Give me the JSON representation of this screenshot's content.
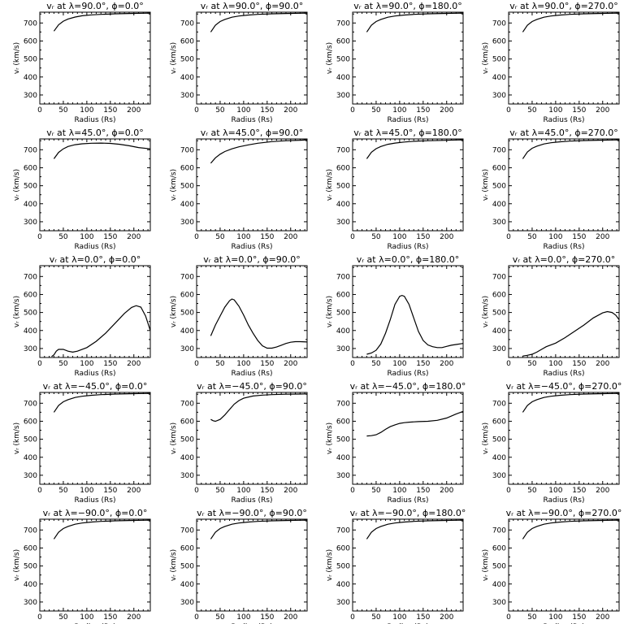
{
  "figure": {
    "xlabel": "Radius (Rs)",
    "ylabel": "vᵣ (km/s)",
    "xlim": [
      0,
      235
    ],
    "ylim": [
      250,
      760
    ],
    "xticks": [
      0,
      50,
      100,
      150,
      200
    ],
    "yticks": [
      300,
      400,
      500,
      600,
      700
    ],
    "line_color": "#000000",
    "grid": false
  },
  "chart_data": [
    {
      "type": "line",
      "title": "vᵣ at λ=90.0°, ϕ=0.0°",
      "xlabel": "Radius (Rs)",
      "ylabel": "vᵣ (km/s)",
      "xlim": [
        0,
        235
      ],
      "ylim": [
        250,
        760
      ],
      "series": [
        {
          "x": [
            30,
            40,
            50,
            60,
            75,
            90,
            110,
            130,
            160,
            190,
            220,
            235
          ],
          "y": [
            655,
            690,
            710,
            722,
            733,
            740,
            745,
            748,
            751,
            753,
            754,
            755
          ]
        }
      ]
    },
    {
      "type": "line",
      "title": "vᵣ at λ=90.0°, ϕ=90.0°",
      "xlabel": "Radius (Rs)",
      "ylabel": "vᵣ (km/s)",
      "xlim": [
        0,
        235
      ],
      "ylim": [
        250,
        760
      ],
      "series": [
        {
          "x": [
            30,
            40,
            50,
            60,
            75,
            90,
            110,
            130,
            160,
            190,
            220,
            235
          ],
          "y": [
            650,
            688,
            708,
            720,
            732,
            739,
            744,
            748,
            751,
            753,
            754,
            755
          ]
        }
      ]
    },
    {
      "type": "line",
      "title": "vᵣ at λ=90.0°, ϕ=180.0°",
      "xlabel": "Radius (Rs)",
      "ylabel": "vᵣ (km/s)",
      "xlim": [
        0,
        235
      ],
      "ylim": [
        250,
        760
      ],
      "series": [
        {
          "x": [
            30,
            40,
            50,
            60,
            75,
            90,
            110,
            130,
            160,
            190,
            220,
            235
          ],
          "y": [
            650,
            688,
            708,
            720,
            732,
            739,
            744,
            748,
            751,
            753,
            754,
            755
          ]
        }
      ]
    },
    {
      "type": "line",
      "title": "vᵣ at λ=90.0°, ϕ=270.0°",
      "xlabel": "Radius (Rs)",
      "ylabel": "vᵣ (km/s)",
      "xlim": [
        0,
        235
      ],
      "ylim": [
        250,
        760
      ],
      "series": [
        {
          "x": [
            30,
            40,
            50,
            60,
            75,
            90,
            110,
            130,
            160,
            190,
            220,
            235
          ],
          "y": [
            650,
            688,
            708,
            720,
            732,
            739,
            744,
            748,
            751,
            753,
            754,
            755
          ]
        }
      ]
    },
    {
      "type": "line",
      "title": "vᵣ at λ=45.0°, ϕ=0.0°",
      "xlabel": "Radius (Rs)",
      "ylabel": "vᵣ (km/s)",
      "xlim": [
        0,
        235
      ],
      "ylim": [
        250,
        760
      ],
      "series": [
        {
          "x": [
            30,
            40,
            50,
            60,
            75,
            90,
            110,
            130,
            150,
            170,
            190,
            210,
            235
          ],
          "y": [
            650,
            685,
            705,
            718,
            728,
            733,
            736,
            737,
            735,
            730,
            722,
            712,
            705
          ]
        }
      ]
    },
    {
      "type": "line",
      "title": "vᵣ at λ=45.0°, ϕ=90.0°",
      "xlabel": "Radius (Rs)",
      "ylabel": "vᵣ (km/s)",
      "xlim": [
        0,
        235
      ],
      "ylim": [
        250,
        760
      ],
      "series": [
        {
          "x": [
            30,
            40,
            50,
            60,
            75,
            90,
            110,
            130,
            160,
            190,
            220,
            235
          ],
          "y": [
            625,
            655,
            675,
            690,
            705,
            716,
            727,
            736,
            745,
            750,
            753,
            755
          ]
        }
      ]
    },
    {
      "type": "line",
      "title": "vᵣ at λ=45.0°, ϕ=180.0°",
      "xlabel": "Radius (Rs)",
      "ylabel": "vᵣ (km/s)",
      "xlim": [
        0,
        235
      ],
      "ylim": [
        250,
        760
      ],
      "series": [
        {
          "x": [
            30,
            40,
            50,
            60,
            75,
            90,
            110,
            130,
            160,
            190,
            220,
            235
          ],
          "y": [
            650,
            686,
            706,
            718,
            730,
            737,
            743,
            747,
            750,
            752,
            754,
            755
          ]
        }
      ]
    },
    {
      "type": "line",
      "title": "vᵣ at λ=45.0°, ϕ=270.0°",
      "xlabel": "Radius (Rs)",
      "ylabel": "vᵣ (km/s)",
      "xlim": [
        0,
        235
      ],
      "ylim": [
        250,
        760
      ],
      "series": [
        {
          "x": [
            30,
            40,
            50,
            60,
            75,
            90,
            110,
            130,
            160,
            190,
            220,
            235
          ],
          "y": [
            650,
            688,
            708,
            720,
            732,
            739,
            744,
            748,
            751,
            753,
            754,
            755
          ]
        }
      ]
    },
    {
      "type": "line",
      "title": "vᵣ at λ=0.0°, ϕ=0.0°",
      "xlabel": "Radius (Rs)",
      "ylabel": "vᵣ (km/s)",
      "xlim": [
        0,
        235
      ],
      "ylim": [
        250,
        760
      ],
      "series": [
        {
          "x": [
            25,
            30,
            35,
            40,
            50,
            60,
            70,
            80,
            100,
            120,
            140,
            160,
            180,
            195,
            205,
            215,
            225,
            235
          ],
          "y": [
            255,
            265,
            285,
            295,
            295,
            285,
            280,
            285,
            305,
            340,
            385,
            440,
            495,
            528,
            538,
            530,
            480,
            400
          ]
        }
      ]
    },
    {
      "type": "line",
      "title": "vᵣ at λ=0.0°, ϕ=90.0°",
      "xlabel": "Radius (Rs)",
      "ylabel": "vᵣ (km/s)",
      "xlim": [
        0,
        235
      ],
      "ylim": [
        250,
        760
      ],
      "series": [
        {
          "x": [
            30,
            40,
            50,
            60,
            70,
            75,
            80,
            90,
            100,
            110,
            120,
            130,
            140,
            150,
            160,
            170,
            180,
            190,
            200,
            210,
            220,
            235
          ],
          "y": [
            370,
            430,
            480,
            530,
            565,
            575,
            570,
            535,
            485,
            430,
            385,
            345,
            315,
            302,
            302,
            308,
            318,
            328,
            335,
            338,
            338,
            336
          ]
        }
      ]
    },
    {
      "type": "line",
      "title": "vᵣ at λ=0.0°, ϕ=180.0°",
      "xlabel": "Radius (Rs)",
      "ylabel": "vᵣ (km/s)",
      "xlim": [
        0,
        235
      ],
      "ylim": [
        250,
        760
      ],
      "series": [
        {
          "x": [
            30,
            40,
            50,
            60,
            70,
            80,
            90,
            100,
            105,
            110,
            120,
            130,
            140,
            150,
            160,
            170,
            180,
            190,
            200,
            210,
            220,
            235
          ],
          "y": [
            268,
            275,
            290,
            325,
            385,
            460,
            545,
            590,
            595,
            590,
            545,
            470,
            395,
            345,
            320,
            310,
            305,
            305,
            312,
            318,
            322,
            328
          ]
        }
      ]
    },
    {
      "type": "line",
      "title": "vᵣ at λ=0.0°, ϕ=270.0°",
      "xlabel": "Radius (Rs)",
      "ylabel": "vᵣ (km/s)",
      "xlim": [
        0,
        235
      ],
      "ylim": [
        250,
        760
      ],
      "series": [
        {
          "x": [
            30,
            40,
            50,
            60,
            70,
            80,
            100,
            120,
            140,
            160,
            180,
            200,
            210,
            220,
            228,
            235
          ],
          "y": [
            258,
            262,
            268,
            280,
            295,
            310,
            330,
            360,
            395,
            430,
            470,
            498,
            505,
            500,
            485,
            460
          ]
        }
      ]
    },
    {
      "type": "line",
      "title": "vᵣ at λ=−45.0°, ϕ=0.0°",
      "xlabel": "Radius (Rs)",
      "ylabel": "vᵣ (km/s)",
      "xlim": [
        0,
        235
      ],
      "ylim": [
        250,
        760
      ],
      "series": [
        {
          "x": [
            30,
            40,
            50,
            60,
            75,
            90,
            110,
            130,
            160,
            190,
            220,
            235
          ],
          "y": [
            650,
            688,
            708,
            720,
            732,
            739,
            744,
            748,
            751,
            753,
            754,
            755
          ]
        }
      ]
    },
    {
      "type": "line",
      "title": "vᵣ at λ=−45.0°, ϕ=90.0°",
      "xlabel": "Radius (Rs)",
      "ylabel": "vᵣ (km/s)",
      "xlim": [
        0,
        235
      ],
      "ylim": [
        250,
        760
      ],
      "series": [
        {
          "x": [
            30,
            35,
            40,
            50,
            60,
            70,
            80,
            90,
            100,
            120,
            140,
            160,
            190,
            220,
            235
          ],
          "y": [
            610,
            603,
            600,
            610,
            635,
            665,
            695,
            715,
            728,
            740,
            745,
            748,
            750,
            751,
            752
          ]
        }
      ]
    },
    {
      "type": "line",
      "title": "vᵣ at λ=−45.0°, ϕ=180.0°",
      "xlabel": "Radius (Rs)",
      "ylabel": "vᵣ (km/s)",
      "xlim": [
        0,
        235
      ],
      "ylim": [
        250,
        760
      ],
      "series": [
        {
          "x": [
            30,
            40,
            50,
            60,
            70,
            80,
            90,
            100,
            110,
            120,
            140,
            160,
            180,
            200,
            220,
            235
          ],
          "y": [
            518,
            520,
            525,
            538,
            555,
            570,
            580,
            588,
            592,
            595,
            598,
            600,
            605,
            618,
            640,
            655
          ]
        }
      ]
    },
    {
      "type": "line",
      "title": "vᵣ at λ=−45.0°, ϕ=270.0°",
      "xlabel": "Radius (Rs)",
      "ylabel": "vᵣ (km/s)",
      "xlim": [
        0,
        235
      ],
      "ylim": [
        250,
        760
      ],
      "series": [
        {
          "x": [
            30,
            40,
            50,
            60,
            75,
            90,
            110,
            130,
            160,
            190,
            220,
            235
          ],
          "y": [
            650,
            688,
            708,
            720,
            732,
            739,
            744,
            748,
            751,
            753,
            754,
            755
          ]
        }
      ]
    },
    {
      "type": "line",
      "title": "vᵣ at λ=−90.0°, ϕ=0.0°",
      "xlabel": "Radius (Rs)",
      "ylabel": "vᵣ (km/s)",
      "xlim": [
        0,
        235
      ],
      "ylim": [
        250,
        760
      ],
      "series": [
        {
          "x": [
            30,
            40,
            50,
            60,
            75,
            90,
            110,
            130,
            160,
            190,
            220,
            235
          ],
          "y": [
            650,
            688,
            708,
            720,
            732,
            739,
            744,
            748,
            751,
            753,
            754,
            755
          ]
        }
      ]
    },
    {
      "type": "line",
      "title": "vᵣ at λ=−90.0°, ϕ=90.0°",
      "xlabel": "Radius (Rs)",
      "ylabel": "vᵣ (km/s)",
      "xlim": [
        0,
        235
      ],
      "ylim": [
        250,
        760
      ],
      "series": [
        {
          "x": [
            30,
            40,
            50,
            60,
            75,
            90,
            110,
            130,
            160,
            190,
            220,
            235
          ],
          "y": [
            650,
            688,
            708,
            720,
            732,
            739,
            744,
            748,
            751,
            753,
            754,
            755
          ]
        }
      ]
    },
    {
      "type": "line",
      "title": "vᵣ at λ=−90.0°, ϕ=180.0°",
      "xlabel": "Radius (Rs)",
      "ylabel": "vᵣ (km/s)",
      "xlim": [
        0,
        235
      ],
      "ylim": [
        250,
        760
      ],
      "series": [
        {
          "x": [
            30,
            40,
            50,
            60,
            75,
            90,
            110,
            130,
            160,
            190,
            220,
            235
          ],
          "y": [
            650,
            688,
            708,
            720,
            732,
            739,
            744,
            748,
            751,
            753,
            754,
            755
          ]
        }
      ]
    },
    {
      "type": "line",
      "title": "vᵣ at λ=−90.0°, ϕ=270.0°",
      "xlabel": "Radius (Rs)",
      "ylabel": "vᵣ (km/s)",
      "xlim": [
        0,
        235
      ],
      "ylim": [
        250,
        760
      ],
      "series": [
        {
          "x": [
            30,
            40,
            50,
            60,
            75,
            90,
            110,
            130,
            160,
            190,
            220,
            235
          ],
          "y": [
            650,
            688,
            708,
            720,
            732,
            739,
            744,
            748,
            751,
            753,
            754,
            755
          ]
        }
      ]
    }
  ]
}
